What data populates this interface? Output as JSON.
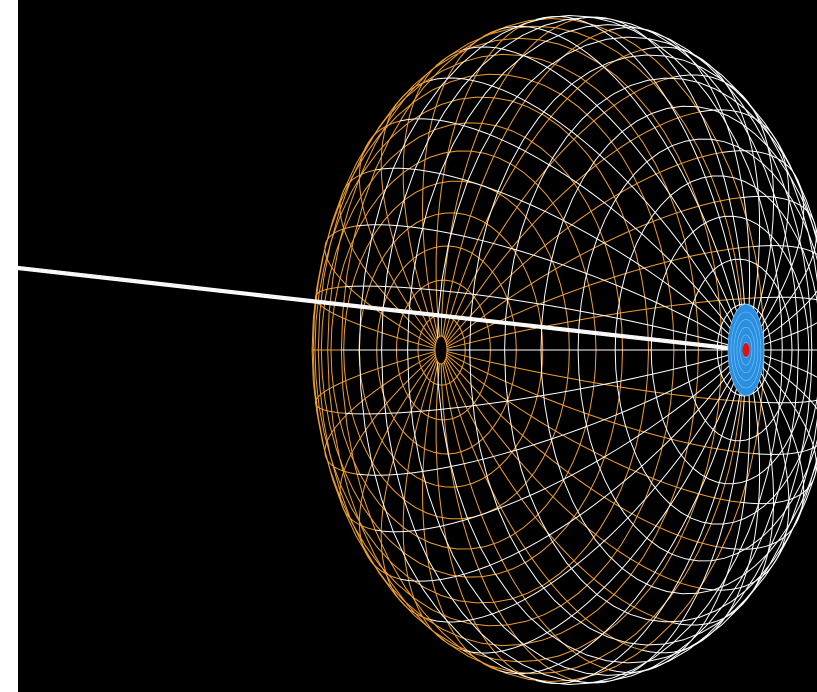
{
  "scene": {
    "subject": "wireframe-sphere",
    "colors": {
      "background": "#000000",
      "page": "#ffffff",
      "back_hemisphere_wire": "#f0a030",
      "front_hemisphere_wire": "#ffffff",
      "axis_line": "#ffffff",
      "pole_disc": "#2a8fe0",
      "pole_marker": "#e01010"
    },
    "icons": [
      "sphere-wireframe",
      "pole-disc",
      "pole-marker",
      "axis-line"
    ]
  }
}
